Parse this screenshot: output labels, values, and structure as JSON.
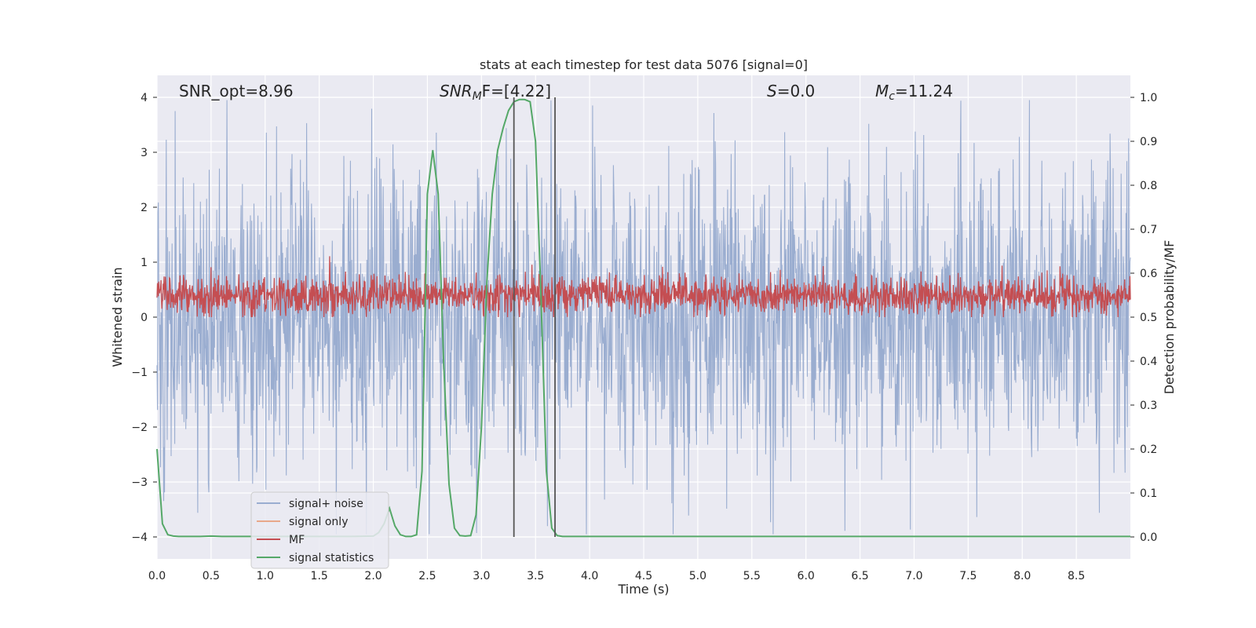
{
  "chart_data": {
    "type": "line",
    "title": "stats at each timestep for test data 5076 [signal=0]",
    "xlabel": "Time (s)",
    "ylabel": "Whitened strain",
    "y2label": "Detection probability/MF",
    "xlim": [
      0,
      9
    ],
    "ylim": [
      -4.4,
      4.4
    ],
    "y2lim": [
      -0.05,
      1.05
    ],
    "xticks": [
      "0.0",
      "0.5",
      "1.0",
      "1.5",
      "2.0",
      "2.5",
      "3.0",
      "3.5",
      "4.0",
      "4.5",
      "5.0",
      "5.5",
      "6.0",
      "6.5",
      "7.0",
      "7.5",
      "8.0",
      "8.5"
    ],
    "yticks": [
      "−4",
      "−3",
      "−2",
      "−1",
      "0",
      "1",
      "2",
      "3",
      "4"
    ],
    "y2ticks": [
      "0.0",
      "0.1",
      "0.2",
      "0.3",
      "0.4",
      "0.5",
      "0.6",
      "0.7",
      "0.8",
      "0.9",
      "1.0"
    ],
    "grid": true,
    "annotations": {
      "snr_opt": "SNR_opt=8.96",
      "snr_mf_base": "SNR",
      "snr_mf_sub": "M",
      "snr_mf_rest": "F=[4.22]",
      "s_var": "S",
      "s_val": "=0.0",
      "mc_var": "M",
      "mc_sub": "c",
      "mc_val": "=11.24"
    },
    "vlines_x": [
      3.3,
      3.68
    ],
    "legend_position": "lower-left",
    "colors": {
      "plot_bg": "#eaeaf2",
      "grid": "#ffffff",
      "noise": "#9aadd0",
      "signal_only": "#e8a88a",
      "mf": "#c44e52",
      "stats": "#55a868",
      "vline": "#555555"
    },
    "series": [
      {
        "name": "signal+ noise",
        "description_values": "white noise, std ~1.2, range -4 to 4"
      },
      {
        "name": "signal only",
        "values": []
      },
      {
        "name": "MF",
        "description_values": "noisy around 0.55 (right axis), range 0.5-0.63"
      },
      {
        "name": "signal statistics",
        "x": [
          0.0,
          0.05,
          0.1,
          0.15,
          0.2,
          0.3,
          0.4,
          0.5,
          0.6,
          0.8,
          1.0,
          1.2,
          1.4,
          1.6,
          1.8,
          2.0,
          2.05,
          2.1,
          2.15,
          2.2,
          2.25,
          2.3,
          2.35,
          2.4,
          2.45,
          2.5,
          2.55,
          2.6,
          2.65,
          2.7,
          2.75,
          2.8,
          2.85,
          2.9,
          2.95,
          3.0,
          3.05,
          3.1,
          3.15,
          3.2,
          3.25,
          3.3,
          3.35,
          3.4,
          3.45,
          3.5,
          3.55,
          3.6,
          3.65,
          3.7,
          3.75,
          3.8,
          3.85,
          3.9,
          3.95,
          4.0,
          4.5,
          5.0,
          6.0,
          7.0,
          8.0,
          9.0
        ],
        "values": [
          0.2,
          0.03,
          0.005,
          0.002,
          0.001,
          0.001,
          0.001,
          0.002,
          0.001,
          0.001,
          0.001,
          0.001,
          0.001,
          0.001,
          0.001,
          0.002,
          0.01,
          0.03,
          0.065,
          0.025,
          0.005,
          0.001,
          0.001,
          0.005,
          0.15,
          0.78,
          0.88,
          0.78,
          0.4,
          0.12,
          0.02,
          0.003,
          0.002,
          0.003,
          0.05,
          0.25,
          0.58,
          0.78,
          0.88,
          0.93,
          0.97,
          0.99,
          0.995,
          0.995,
          0.99,
          0.9,
          0.55,
          0.15,
          0.02,
          0.003,
          0.001,
          0.001,
          0.001,
          0.001,
          0.001,
          0.001,
          0.001,
          0.001,
          0.001,
          0.001,
          0.001,
          0.001
        ]
      }
    ]
  }
}
